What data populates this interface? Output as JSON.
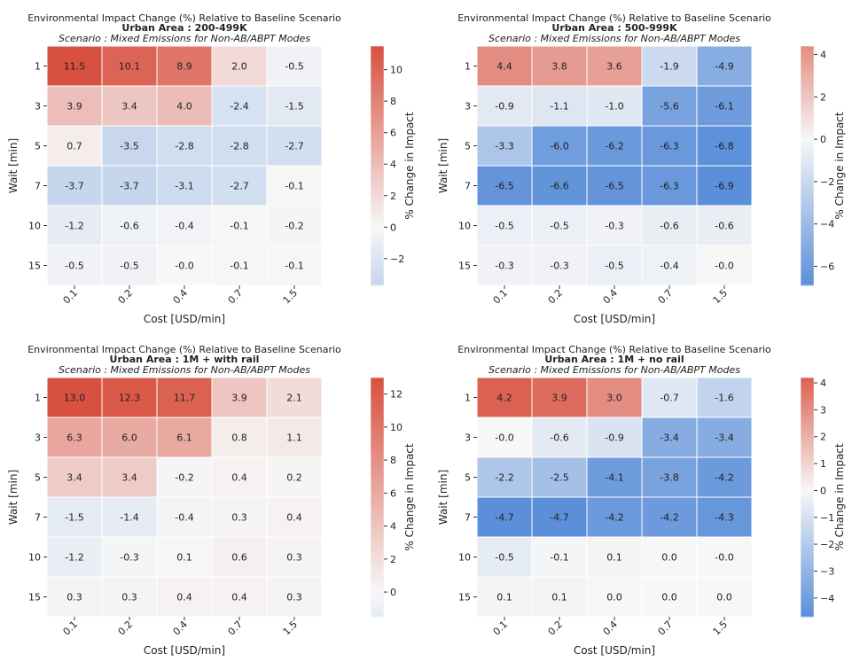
{
  "chart_data": [
    {
      "type": "heatmap",
      "title": "Environmental Impact Change (%) Relative to Baseline Scenario",
      "subtitle_label": "Urban Area :",
      "subtitle_value": "200-499K",
      "scenario": "Scenario : Mixed Emissions for Non-AB/ABPT Modes",
      "xlabel": "Cost [USD/min]",
      "ylabel": "Wait [min]",
      "colorbar_label": "% Change in Impact",
      "x": [
        "0.1",
        "0.2",
        "0.4",
        "0.7",
        "1.5"
      ],
      "y": [
        "1",
        "3",
        "5",
        "7",
        "10",
        "15"
      ],
      "values": [
        [
          11.5,
          10.1,
          8.9,
          2.0,
          -0.5
        ],
        [
          3.9,
          3.4,
          4.0,
          -2.4,
          -1.5
        ],
        [
          0.7,
          -3.5,
          -2.8,
          -2.8,
          -2.7
        ],
        [
          -3.7,
          -3.7,
          -3.1,
          -2.7,
          -0.1
        ],
        [
          -1.2,
          -0.6,
          -0.4,
          -0.1,
          -0.2
        ],
        [
          -0.5,
          -0.5,
          -0.0,
          -0.1,
          -0.1
        ]
      ],
      "labels": [
        [
          "11.5",
          "10.1",
          "8.9",
          "2.0",
          "-0.5"
        ],
        [
          "3.9",
          "3.4",
          "4.0",
          "-2.4",
          "-1.5"
        ],
        [
          "0.7",
          "-3.5",
          "-2.8",
          "-2.8",
          "-2.7"
        ],
        [
          "-3.7",
          "-3.7",
          "-3.1",
          "-2.7",
          "-0.1"
        ],
        [
          "-1.2",
          "-0.6",
          "-0.4",
          "-0.1",
          "-0.2"
        ],
        [
          "-0.5",
          "-0.5",
          "-0.0",
          "-0.1",
          "-0.1"
        ]
      ],
      "vmin": -3.7,
      "vmax": 11.5,
      "colorbar_ticks": [
        {
          "value": -2,
          "label": "−2"
        },
        {
          "value": 0,
          "label": "0"
        },
        {
          "value": 2,
          "label": "2"
        },
        {
          "value": 4,
          "label": "4"
        },
        {
          "value": 6,
          "label": "6"
        },
        {
          "value": 8,
          "label": "8"
        },
        {
          "value": 10,
          "label": "10"
        }
      ]
    },
    {
      "type": "heatmap",
      "title": "Environmental Impact Change (%) Relative to Baseline Scenario",
      "subtitle_label": "Urban Area :",
      "subtitle_value": "500-999K",
      "scenario": "Scenario : Mixed Emissions for Non-AB/ABPT Modes",
      "xlabel": "Cost [USD/min]",
      "ylabel": "Wait [min]",
      "colorbar_label": "% Change in Impact",
      "x": [
        "0.1",
        "0.2",
        "0.4",
        "0.7",
        "1.5"
      ],
      "y": [
        "1",
        "3",
        "5",
        "7",
        "10",
        "15"
      ],
      "values": [
        [
          4.4,
          3.8,
          3.6,
          -1.9,
          -4.9
        ],
        [
          -0.9,
          -1.1,
          -1.0,
          -5.6,
          -6.1
        ],
        [
          -3.3,
          -6.0,
          -6.2,
          -6.3,
          -6.8
        ],
        [
          -6.5,
          -6.6,
          -6.5,
          -6.3,
          -6.9
        ],
        [
          -0.5,
          -0.5,
          -0.3,
          -0.6,
          -0.6
        ],
        [
          -0.3,
          -0.3,
          -0.5,
          -0.4,
          -0.0
        ]
      ],
      "labels": [
        [
          "4.4",
          "3.8",
          "3.6",
          "-1.9",
          "-4.9"
        ],
        [
          "-0.9",
          "-1.1",
          "-1.0",
          "-5.6",
          "-6.1"
        ],
        [
          "-3.3",
          "-6.0",
          "-6.2",
          "-6.3",
          "-6.8"
        ],
        [
          "-6.5",
          "-6.6",
          "-6.5",
          "-6.3",
          "-6.9"
        ],
        [
          "-0.5",
          "-0.5",
          "-0.3",
          "-0.6",
          "-0.6"
        ],
        [
          "-0.3",
          "-0.3",
          "-0.5",
          "-0.4",
          "-0.0"
        ]
      ],
      "vmin": -6.9,
      "vmax": 4.4,
      "colorbar_ticks": [
        {
          "value": -6,
          "label": "−6"
        },
        {
          "value": -4,
          "label": "−4"
        },
        {
          "value": -2,
          "label": "−2"
        },
        {
          "value": 0,
          "label": "0"
        },
        {
          "value": 2,
          "label": "2"
        },
        {
          "value": 4,
          "label": "4"
        }
      ]
    },
    {
      "type": "heatmap",
      "title": "Environmental Impact Change (%) Relative to Baseline Scenario",
      "subtitle_label": "Urban Area :",
      "subtitle_value": "1M + with rail",
      "scenario": "Scenario : Mixed Emissions for Non-AB/ABPT Modes",
      "xlabel": "Cost [USD/min]",
      "ylabel": "Wait [min]",
      "colorbar_label": "% Change in Impact",
      "x": [
        "0.1",
        "0.2",
        "0.4",
        "0.7",
        "1.5"
      ],
      "y": [
        "1",
        "3",
        "5",
        "7",
        "10",
        "15"
      ],
      "values": [
        [
          13.0,
          12.3,
          11.7,
          3.9,
          2.1
        ],
        [
          6.3,
          6.0,
          6.1,
          0.8,
          1.1
        ],
        [
          3.4,
          3.4,
          -0.2,
          0.4,
          0.2
        ],
        [
          -1.5,
          -1.4,
          -0.4,
          0.3,
          0.4
        ],
        [
          -1.2,
          -0.3,
          0.1,
          0.6,
          0.3
        ],
        [
          0.3,
          0.3,
          0.4,
          0.4,
          0.3
        ]
      ],
      "labels": [
        [
          "13.0",
          "12.3",
          "11.7",
          "3.9",
          "2.1"
        ],
        [
          "6.3",
          "6.0",
          "6.1",
          "0.8",
          "1.1"
        ],
        [
          "3.4",
          "3.4",
          "-0.2",
          "0.4",
          "0.2"
        ],
        [
          "-1.5",
          "-1.4",
          "-0.4",
          "0.3",
          "0.4"
        ],
        [
          "-1.2",
          "-0.3",
          "0.1",
          "0.6",
          "0.3"
        ],
        [
          "0.3",
          "0.3",
          "0.4",
          "0.4",
          "0.3"
        ]
      ],
      "vmin": -1.5,
      "vmax": 13.0,
      "colorbar_ticks": [
        {
          "value": 0,
          "label": "0"
        },
        {
          "value": 2,
          "label": "2"
        },
        {
          "value": 4,
          "label": "4"
        },
        {
          "value": 6,
          "label": "6"
        },
        {
          "value": 8,
          "label": "8"
        },
        {
          "value": 10,
          "label": "10"
        },
        {
          "value": 12,
          "label": "12"
        }
      ]
    },
    {
      "type": "heatmap",
      "title": "Environmental Impact Change (%) Relative to Baseline Scenario",
      "subtitle_label": "Urban Area :",
      "subtitle_value": "1M + no rail",
      "scenario": "Scenario : Mixed Emissions for Non-AB/ABPT Modes",
      "xlabel": "Cost [USD/min]",
      "ylabel": "Wait [min]",
      "colorbar_label": "% Change in Impact",
      "x": [
        "0.1",
        "0.2",
        "0.4",
        "0.7",
        "1.5"
      ],
      "y": [
        "1",
        "3",
        "5",
        "7",
        "10",
        "15"
      ],
      "values": [
        [
          4.2,
          3.9,
          3.0,
          -0.7,
          -1.6
        ],
        [
          -0.0,
          -0.6,
          -0.9,
          -3.4,
          -3.4
        ],
        [
          -2.2,
          -2.5,
          -4.1,
          -3.8,
          -4.2
        ],
        [
          -4.7,
          -4.7,
          -4.2,
          -4.2,
          -4.3
        ],
        [
          -0.5,
          -0.1,
          0.1,
          0.0,
          -0.0
        ],
        [
          0.1,
          0.1,
          0.0,
          0.0,
          0.0
        ]
      ],
      "labels": [
        [
          "4.2",
          "3.9",
          "3.0",
          "-0.7",
          "-1.6"
        ],
        [
          "-0.0",
          "-0.6",
          "-0.9",
          "-3.4",
          "-3.4"
        ],
        [
          "-2.2",
          "-2.5",
          "-4.1",
          "-3.8",
          "-4.2"
        ],
        [
          "-4.7",
          "-4.7",
          "-4.2",
          "-4.2",
          "-4.3"
        ],
        [
          "-0.5",
          "-0.1",
          "0.1",
          "0.0",
          "-0.0"
        ],
        [
          "0.1",
          "0.1",
          "0.0",
          "0.0",
          "0.0"
        ]
      ],
      "vmin": -4.7,
      "vmax": 4.2,
      "colorbar_ticks": [
        {
          "value": -4,
          "label": "−4"
        },
        {
          "value": -3,
          "label": "−3"
        },
        {
          "value": -2,
          "label": "−2"
        },
        {
          "value": -1,
          "label": "−1"
        },
        {
          "value": 0,
          "label": "0"
        },
        {
          "value": 1,
          "label": "1"
        },
        {
          "value": 2,
          "label": "2"
        },
        {
          "value": 3,
          "label": "3"
        },
        {
          "value": 4,
          "label": "4"
        }
      ]
    }
  ],
  "colors": {
    "negative": "#5b8fd9",
    "neutral": "#f7f7f7",
    "positive": "#d8503f"
  }
}
